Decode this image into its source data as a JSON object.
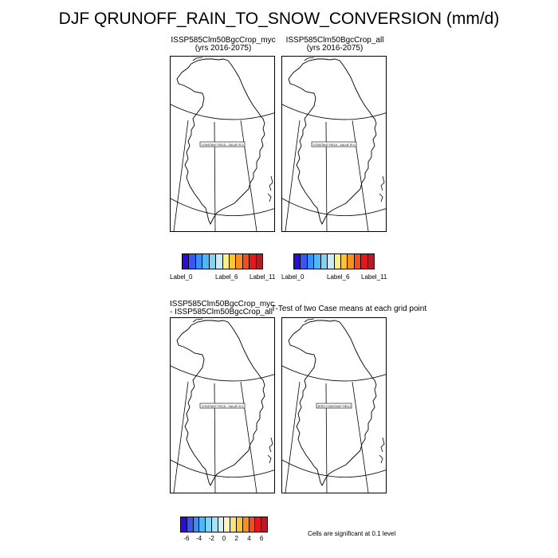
{
  "title": "DJF QRUNOFF_RAIN_TO_SNOW_CONVERSION (mm/d)",
  "panels": [
    {
      "case": "ISSP585Clm50BgcCrop_myc",
      "years": "(yrs 2016-2075)",
      "field_label": "CONSTANT FIELD - VALUE IS 0"
    },
    {
      "case": "ISSP585Clm50BgcCrop_all",
      "years": "(yrs 2016-2075)",
      "field_label": "CONSTANT FIELD - VALUE IS 0"
    },
    {
      "line1": "ISSP585Clm50BgcCrop_myc",
      "line2": "- ISSP585Clm50BgcCrop_all",
      "field_label": "CONSTANT FIELD - VALUE IS 0"
    },
    {
      "title": "T-Test of two Case means at each grid point",
      "field_label": "ZERO CONSTANT FIELD"
    }
  ],
  "colorbar_top": {
    "colors": [
      "#2b0dd9",
      "#3b55f0",
      "#3a8ff5",
      "#4fb6f7",
      "#7fd3f7",
      "#c9ecf7",
      "#f8ef8e",
      "#f9c43a",
      "#f98e22",
      "#f34e1d",
      "#e2181e",
      "#b21d27"
    ],
    "labels": [
      "Label_0",
      "Label_6",
      "Label_11"
    ]
  },
  "colorbar_bottom": {
    "colors": [
      "#2b0dd9",
      "#3b55f0",
      "#3a8ff5",
      "#4fb6f7",
      "#7fd3f7",
      "#a9e3f7",
      "#d6f0f6",
      "#fbf6c4",
      "#f8e27a",
      "#f9c43a",
      "#f98e22",
      "#f34e1d",
      "#e2181e",
      "#b21d27"
    ],
    "ticks": [
      "-6",
      "-4",
      "-2",
      "0",
      "2",
      "4",
      "6"
    ]
  },
  "significance_note": "Cells are significant at 0.1 level"
}
